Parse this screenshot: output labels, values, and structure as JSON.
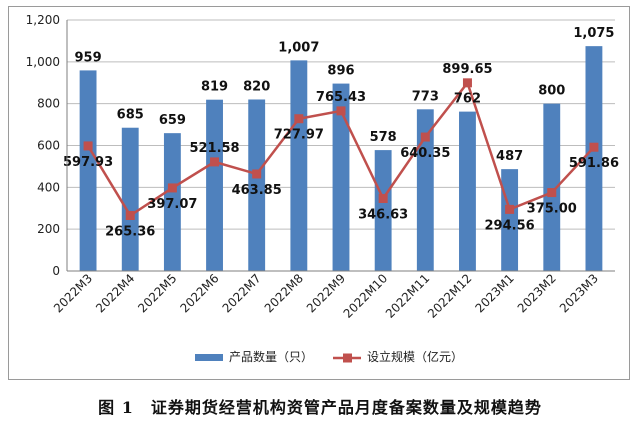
{
  "caption": "图 1　证券期货经营机构资管产品月度备案数量及规模趋势",
  "chart_data": {
    "type": "bar+line",
    "categories": [
      "2022M3",
      "2022M4",
      "2022M5",
      "2022M6",
      "2022M7",
      "2022M8",
      "2022M9",
      "2022M10",
      "2022M11",
      "2022M12",
      "2023M1",
      "2023M2",
      "2023M3"
    ],
    "series": [
      {
        "name": "产品数量（只）",
        "type": "bar",
        "color": "#4f81bd",
        "values": [
          959,
          685,
          659,
          819,
          820,
          1007,
          896,
          578,
          773,
          762,
          487,
          800,
          1075
        ],
        "labels": [
          "959",
          "685",
          "659",
          "819",
          "820",
          "1,007",
          "896",
          "578",
          "773",
          "762",
          "487",
          "800",
          "1,075"
        ]
      },
      {
        "name": "设立规模（亿元）",
        "type": "line",
        "color": "#c0504d",
        "values": [
          597.93,
          265.36,
          397.07,
          521.58,
          463.85,
          727.97,
          765.43,
          346.63,
          640.35,
          899.65,
          294.56,
          375.0,
          591.86
        ],
        "labels": [
          "597.93",
          "265.36",
          "397.07",
          "521.58",
          "463.85",
          "727.97",
          "765.43",
          "346.63",
          "640.35",
          "899.65",
          "294.56",
          "375.00",
          "591.86"
        ]
      }
    ],
    "y_ticks": [
      "0",
      "200",
      "400",
      "600",
      "800",
      "1,000",
      "1,200"
    ],
    "ylim": [
      0,
      1200
    ],
    "grid": true,
    "legend_position": "bottom"
  }
}
